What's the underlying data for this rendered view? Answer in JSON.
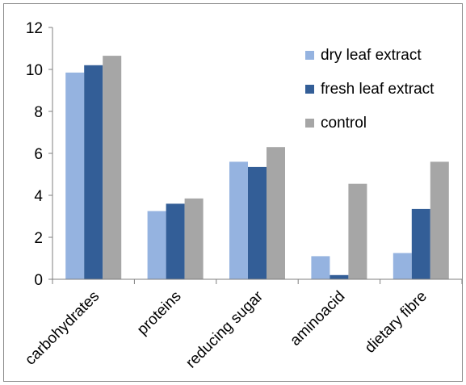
{
  "chart_data": {
    "type": "bar",
    "title": "",
    "xlabel": "",
    "ylabel": "",
    "categories": [
      "carbohydrates",
      "proteins",
      "reducing sugar",
      "aminoacid",
      "dietary fibre"
    ],
    "series": [
      {
        "name": "dry leaf extract",
        "color": "#95b3e0",
        "values": [
          9.85,
          3.25,
          5.6,
          1.1,
          1.25
        ]
      },
      {
        "name": "fresh leaf extract",
        "color": "#335e97",
        "values": [
          10.2,
          3.6,
          5.35,
          0.2,
          3.35
        ]
      },
      {
        "name": "control",
        "color": "#a6a6a6",
        "values": [
          10.65,
          3.85,
          6.3,
          4.55,
          5.6
        ]
      }
    ],
    "ylim": [
      0,
      12
    ],
    "yticks": [
      0,
      2,
      4,
      6,
      8,
      10,
      12
    ],
    "grid": false,
    "legend_position": "top-right"
  }
}
